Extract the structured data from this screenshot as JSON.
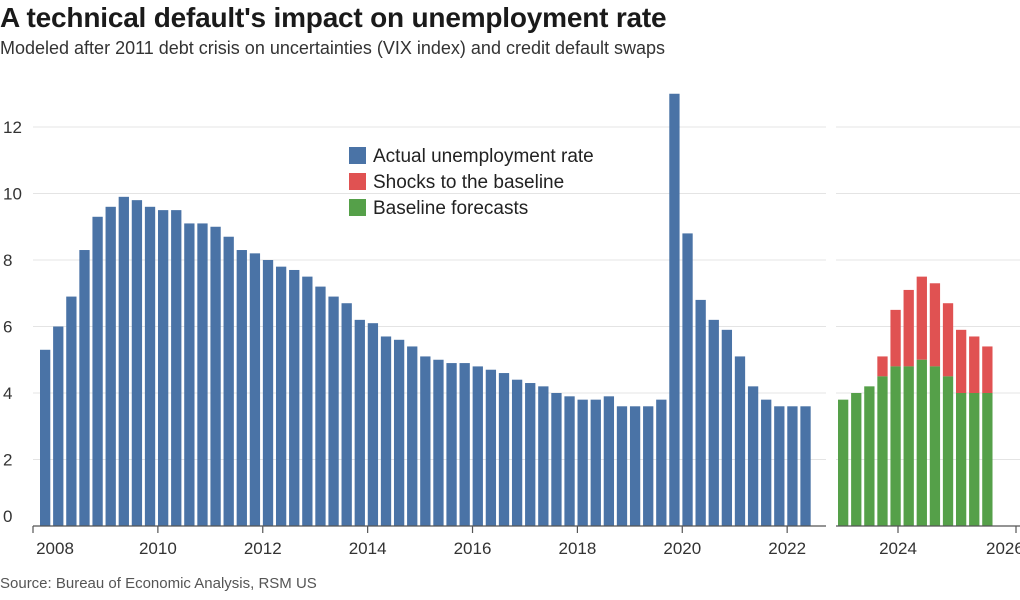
{
  "header": {
    "title": "A technical default's impact on unemployment rate",
    "subtitle": "Modeled after 2011 debt crisis on uncertainties (VIX index) and credit default swaps",
    "source": "Source: Bureau of Economic Analysis, RSM US"
  },
  "colors": {
    "actual": "#4a73a6",
    "shock": "#e05252",
    "baseline": "#55a049",
    "grid": "#e4e4e4",
    "axis": "#555555"
  },
  "chart_data": {
    "type": "bar",
    "stacked_forecast": true,
    "ylim": [
      0,
      13
    ],
    "yticks": [
      0,
      2,
      4,
      6,
      8,
      10,
      12
    ],
    "xticks": [
      "2008",
      "2010",
      "2012",
      "2014",
      "2016",
      "2018",
      "2020",
      "2022",
      "2024",
      "2026"
    ],
    "grid": true,
    "legend_position": "top-center",
    "legend": [
      {
        "name": "Actual unemployment rate",
        "color": "#4a73a6"
      },
      {
        "name": "Shocks to the baseline",
        "color": "#e05252"
      },
      {
        "name": "Baseline forecasts",
        "color": "#55a049"
      }
    ],
    "actual": {
      "name": "Actual unemployment rate",
      "start": "2008-Q1",
      "values": [
        5.3,
        6.0,
        6.9,
        8.3,
        9.3,
        9.6,
        9.9,
        9.8,
        9.6,
        9.5,
        9.5,
        9.1,
        9.1,
        9.0,
        8.7,
        8.3,
        8.2,
        8.0,
        7.8,
        7.7,
        7.5,
        7.2,
        6.9,
        6.7,
        6.2,
        6.1,
        5.7,
        5.6,
        5.4,
        5.1,
        5.0,
        4.9,
        4.9,
        4.8,
        4.7,
        4.6,
        4.4,
        4.3,
        4.2,
        4.0,
        3.9,
        3.8,
        3.8,
        3.9,
        3.6,
        3.6,
        3.6,
        3.8,
        13.0,
        8.8,
        6.8,
        6.2,
        5.9,
        5.1,
        4.2,
        3.8,
        3.6,
        3.6,
        3.6
      ]
    },
    "forecast": {
      "start": "2023-Q1",
      "baseline": [
        3.8,
        4.0,
        4.2,
        4.5,
        4.8,
        4.8,
        5.0,
        4.8,
        4.5,
        4.0,
        4.0,
        4.0
      ],
      "totals": [
        3.8,
        4.0,
        4.2,
        5.1,
        6.5,
        7.1,
        7.5,
        7.3,
        6.7,
        5.9,
        5.7,
        5.4
      ]
    }
  }
}
